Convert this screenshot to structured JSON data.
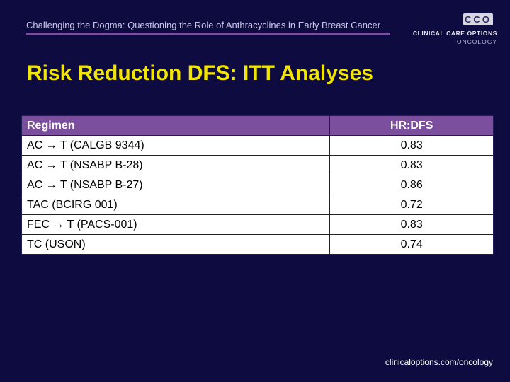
{
  "header": {
    "subtitle": "Challenging the Dogma: Questioning the Role of Anthracyclines in Early Breast Cancer"
  },
  "logo": {
    "mark": "CCO",
    "line1": "CLINICAL CARE OPTIONS",
    "line2": "ONCOLOGY"
  },
  "title": "Risk Reduction DFS: ITT Analyses",
  "table": {
    "headers": [
      "Regimen",
      "HR:DFS"
    ],
    "rows": [
      {
        "regimen": "AC → T (CALGB 9344)",
        "hr": "0.83"
      },
      {
        "regimen": "AC → T (NSABP B-28)",
        "hr": "0.83"
      },
      {
        "regimen": "AC → T (NSABP B-27)",
        "hr": "0.86"
      },
      {
        "regimen": "TAC (BCIRG 001)",
        "hr": "0.72"
      },
      {
        "regimen": "FEC → T (PACS-001)",
        "hr": "0.83"
      },
      {
        "regimen": "TC (USON)",
        "hr": "0.74"
      }
    ]
  },
  "footer": {
    "url": "clinicaloptions.com/oncology"
  },
  "colors": {
    "background": "#0d0b3f",
    "title": "#f2e500",
    "header_rule": "#7b4fa0",
    "table_header": "#7b4f9e"
  }
}
